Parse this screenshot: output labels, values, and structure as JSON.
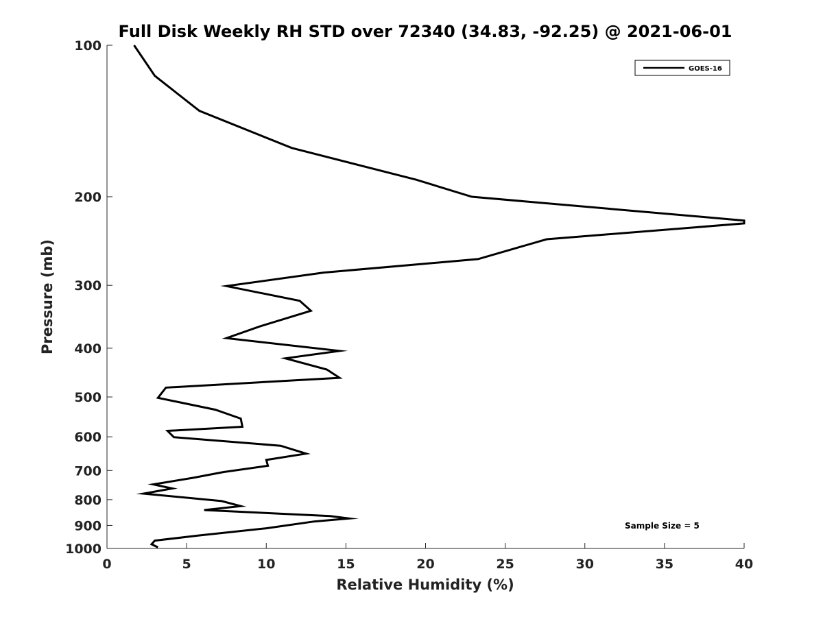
{
  "chart_data": {
    "type": "line",
    "title": "Full Disk Weekly RH STD over 72340 (34.83, -92.25) @ 2021-06-01",
    "xlabel": "Relative Humidity (%)",
    "ylabel": "Pressure (mb)",
    "xlim": [
      0,
      40
    ],
    "ylim": [
      100,
      1000
    ],
    "y_scale": "log",
    "y_reversed": true,
    "grid": false,
    "x_ticks": [
      "0",
      "5",
      "10",
      "15",
      "20",
      "25",
      "30",
      "35",
      "40"
    ],
    "y_ticks": [
      "100",
      "200",
      "300",
      "400",
      "500",
      "600",
      "700",
      "800",
      "900",
      "1000"
    ],
    "legend": {
      "position": "top-right",
      "entries": [
        "GOES-16"
      ]
    },
    "annotation": "Sample Size = 5",
    "series": [
      {
        "name": "GOES-16",
        "color": "#000000",
        "points": [
          [
            1.7,
            100
          ],
          [
            3.0,
            115
          ],
          [
            5.8,
            135
          ],
          [
            11.6,
            160
          ],
          [
            19.4,
            185
          ],
          [
            22.9,
            200
          ],
          [
            40.0,
            223
          ],
          [
            40.0,
            226
          ],
          [
            27.6,
            243
          ],
          [
            23.3,
            266
          ],
          [
            13.6,
            283
          ],
          [
            7.5,
            301
          ],
          [
            12.1,
            322
          ],
          [
            12.8,
            337
          ],
          [
            9.6,
            362
          ],
          [
            7.5,
            382
          ],
          [
            14.6,
            405
          ],
          [
            11.2,
            419
          ],
          [
            13.8,
            441
          ],
          [
            14.6,
            458
          ],
          [
            3.7,
            479
          ],
          [
            3.2,
            502
          ],
          [
            6.8,
            530
          ],
          [
            8.4,
            552
          ],
          [
            8.5,
            573
          ],
          [
            3.8,
            584
          ],
          [
            4.2,
            601
          ],
          [
            10.9,
            625
          ],
          [
            12.5,
            648
          ],
          [
            10.0,
            667
          ],
          [
            10.1,
            685
          ],
          [
            7.3,
            705
          ],
          [
            5.4,
            724
          ],
          [
            2.9,
            746
          ],
          [
            4.1,
            760
          ],
          [
            2.3,
            778
          ],
          [
            7.2,
            805
          ],
          [
            8.4,
            824
          ],
          [
            6.1,
            839
          ],
          [
            14.0,
            862
          ],
          [
            15.2,
            872
          ],
          [
            13.0,
            884
          ],
          [
            10.0,
            912
          ],
          [
            5.7,
            943
          ],
          [
            3.0,
            965
          ],
          [
            2.8,
            981
          ],
          [
            3.2,
            995
          ]
        ]
      }
    ]
  }
}
